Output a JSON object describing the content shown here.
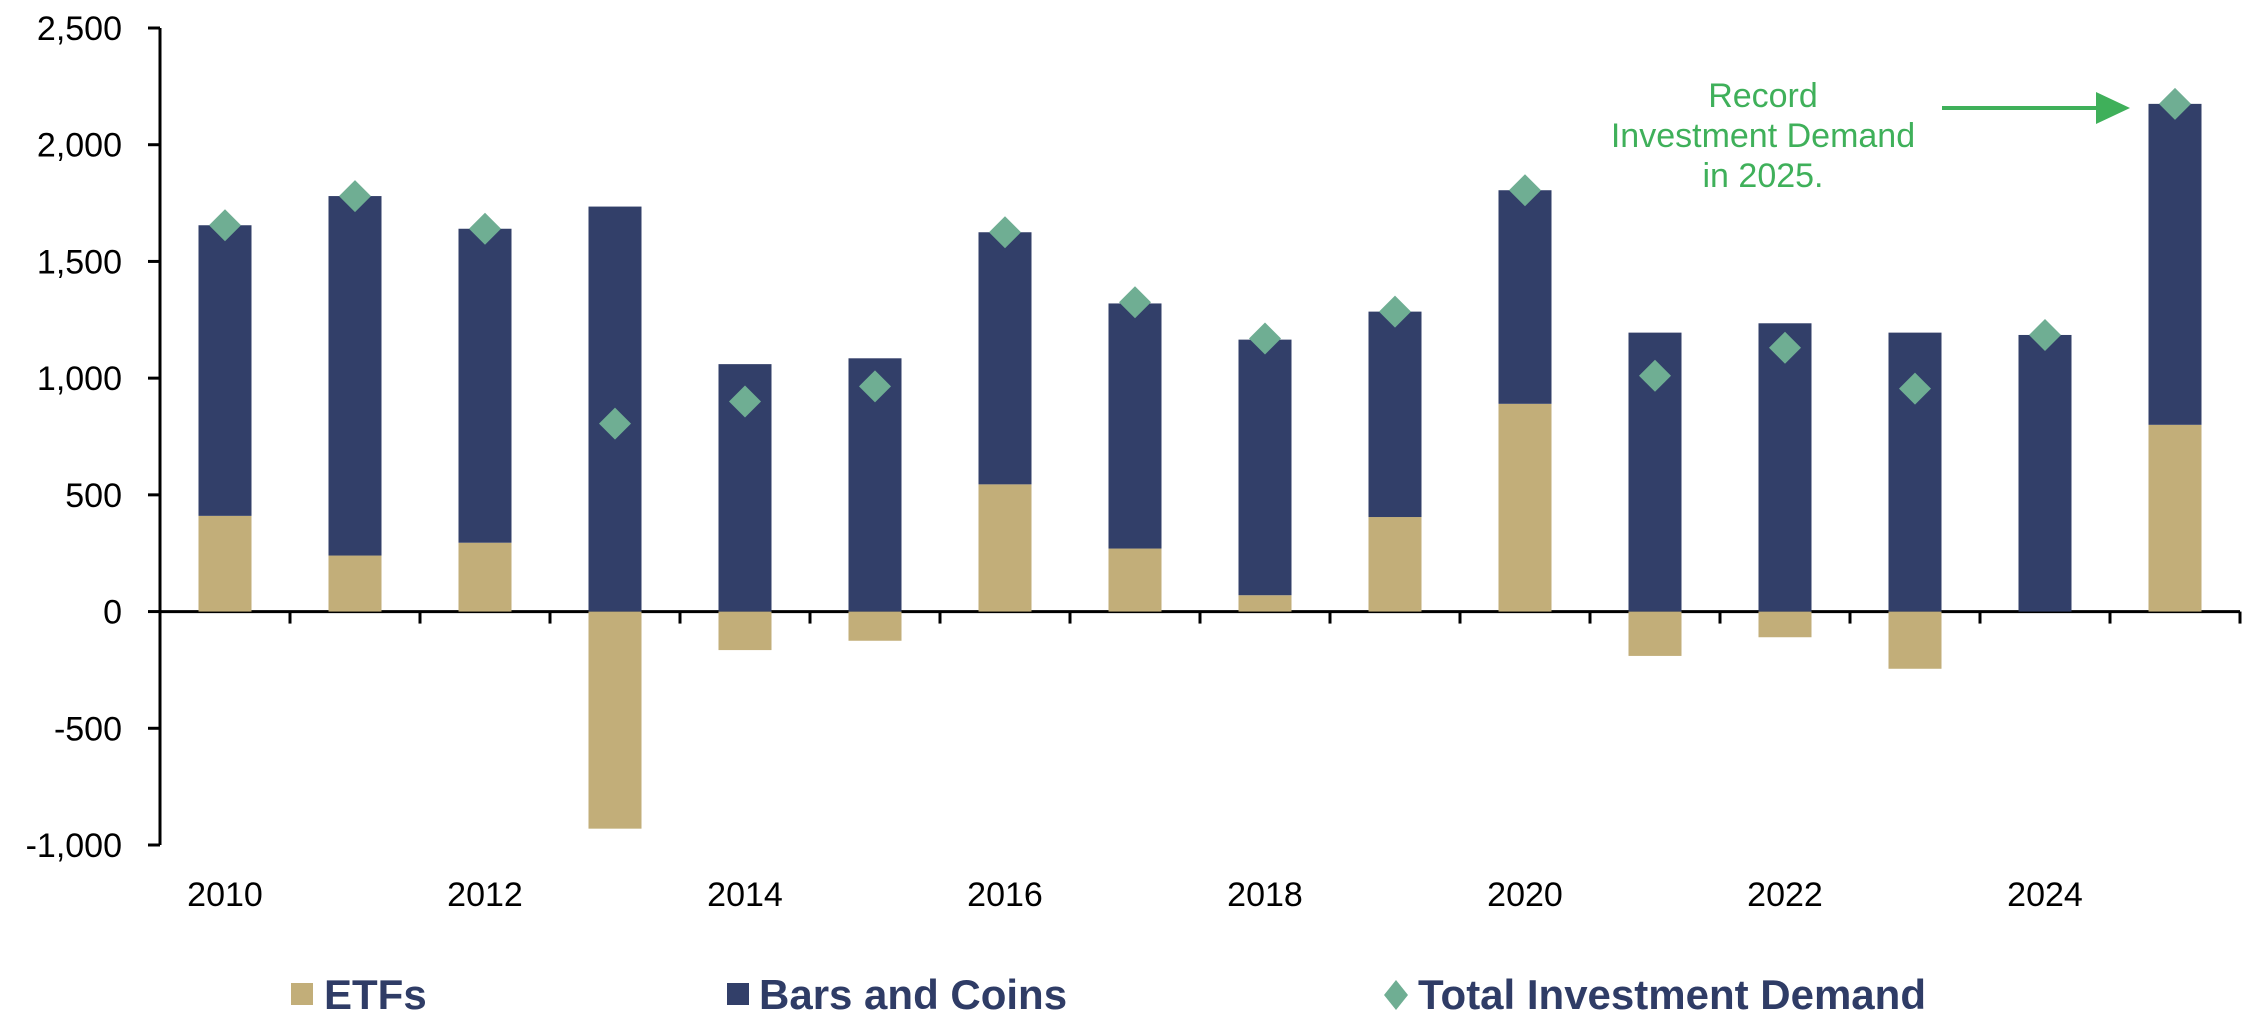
{
  "chart_data": {
    "type": "bar",
    "stacked": true,
    "categories": [
      "2010",
      "2011",
      "2012",
      "2013",
      "2014",
      "2015",
      "2016",
      "2017",
      "2018",
      "2019",
      "2020",
      "2021",
      "2022",
      "2023",
      "2024",
      "2025"
    ],
    "x_tick_labels": [
      "2010",
      "2012",
      "2014",
      "2016",
      "2018",
      "2020",
      "2022",
      "2024"
    ],
    "series": [
      {
        "name": "ETFs",
        "kind": "bar",
        "color": "#c2ae79",
        "values": [
          410,
          240,
          295,
          -930,
          -165,
          -125,
          545,
          270,
          70,
          405,
          890,
          -190,
          -110,
          -245,
          0,
          800
        ]
      },
      {
        "name": "Bars and Coins",
        "kind": "bar",
        "color": "#323f69",
        "values": [
          1245,
          1540,
          1345,
          1735,
          1060,
          1085,
          1080,
          1050,
          1095,
          880,
          915,
          1195,
          1235,
          1195,
          1185,
          1375
        ]
      },
      {
        "name": "Total Investment Demand",
        "kind": "scatter",
        "marker": "diamond",
        "color": "#6fae93",
        "values": [
          1655,
          1780,
          1640,
          805,
          900,
          965,
          1625,
          1325,
          1170,
          1285,
          1805,
          1010,
          1130,
          955,
          1185,
          2175
        ]
      }
    ],
    "ylim": [
      -1000,
      2500
    ],
    "y_ticks": [
      "2,500",
      "2,000",
      "1,500",
      "1,000",
      "500",
      "0",
      "-500",
      "-1,000"
    ],
    "grid": false,
    "legend_position": "bottom",
    "annotation": {
      "lines": [
        "Record",
        "Investment Demand",
        "in 2025."
      ],
      "color": "#3fb05a",
      "target_category": "2025"
    }
  }
}
